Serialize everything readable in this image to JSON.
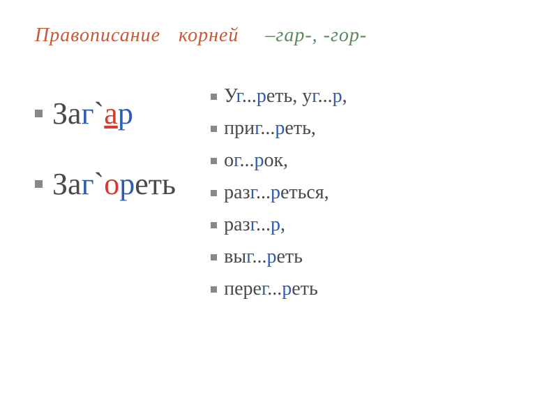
{
  "slide": {
    "title": {
      "part1": "Правописание",
      "part2": "корней",
      "roots": "–гар-,  -гор-",
      "colors": {
        "main": "#c35a3a",
        "roots": "#5b8a5b"
      },
      "fontsize": 28,
      "font_style": "italic"
    },
    "examples": [
      {
        "segments": [
          {
            "text": "За",
            "color": "black"
          },
          {
            "text": "г",
            "color": "blue"
          },
          {
            "text": "`",
            "color": "black"
          },
          {
            "text": "а",
            "color": "red",
            "underline": true
          },
          {
            "text": "р",
            "color": "blue"
          }
        ]
      },
      {
        "segments": [
          {
            "text": "За",
            "color": "black"
          },
          {
            "text": "г",
            "color": "blue"
          },
          {
            "text": "`",
            "color": "black"
          },
          {
            "text": "о",
            "color": "red"
          },
          {
            "text": "р",
            "color": "blue"
          },
          {
            "text": "еть",
            "color": "black"
          }
        ]
      }
    ],
    "exercises": [
      {
        "prefix1": "У",
        "g": "г",
        "mid": "...",
        "r": "р",
        "suffix": "еть, у",
        "g2": "г",
        "mid2": "...",
        "r2": "р",
        "suffix2": ","
      },
      {
        "prefix1": "при",
        "g": "г",
        "mid": "...",
        "r": "р",
        "suffix": "еть,"
      },
      {
        "prefix1": "о",
        "g": "г",
        "mid": "...",
        "r": "р",
        "suffix": "ок,"
      },
      {
        "prefix1": "раз",
        "g": "г",
        "mid": "...",
        "r": "р",
        "suffix": "еться,"
      },
      {
        "prefix1": "раз",
        "g": "г",
        "mid": "...",
        "r": "р",
        "suffix": ","
      },
      {
        "prefix1": "вы",
        "g": "г",
        "mid": "...",
        "r": "р",
        "suffix": "еть"
      },
      {
        "prefix1": "пере",
        "g": "г",
        "mid": "...",
        "r": "р",
        "suffix": "еть"
      }
    ],
    "style": {
      "example_fontsize": 44,
      "exercise_fontsize": 28,
      "bullet_color": "#888888",
      "text_color": "#4a4a4a",
      "red": "#d43a2f",
      "blue": "#2e5db0",
      "background": "#ffffff"
    }
  }
}
